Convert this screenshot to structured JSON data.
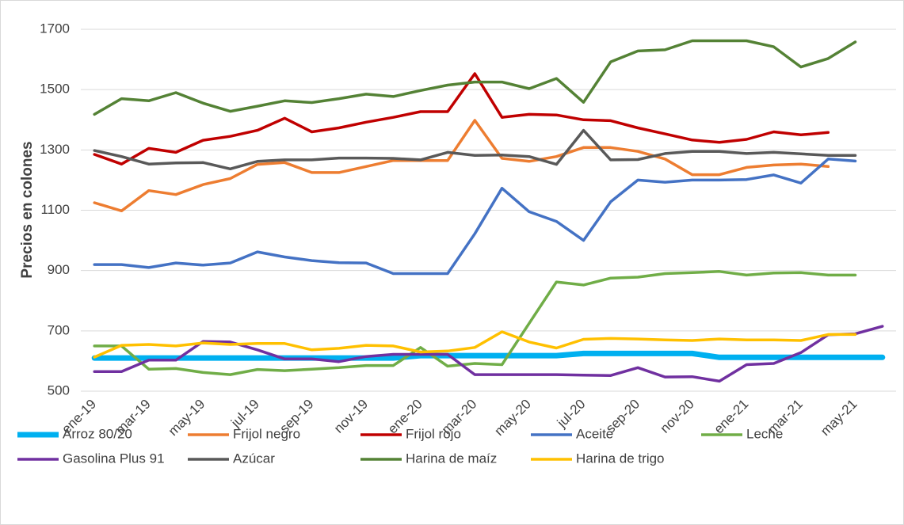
{
  "chart_data": {
    "type": "line",
    "y_label": "Precios en colones",
    "categories": [
      "ene-19",
      null,
      "mar-19",
      null,
      "may-19",
      null,
      "jul-19",
      null,
      "sep-19",
      null,
      "nov-19",
      null,
      "ene-20",
      null,
      "mar-20",
      null,
      "may-20",
      null,
      "jul-20",
      null,
      "sep-20",
      null,
      "nov-20",
      null,
      "ene-21",
      null,
      "mar-21",
      null,
      "may-21",
      null
    ],
    "ylim": [
      500,
      1700
    ],
    "yticks": [
      500,
      700,
      900,
      1100,
      1300,
      1500,
      1700
    ],
    "grid": true,
    "legend": "bottom",
    "series": [
      {
        "name": "Arroz 80/20",
        "color": "#00b0f0",
        "values": [
          610,
          610,
          610,
          610,
          610,
          610,
          610,
          610,
          610,
          610,
          610,
          610,
          618,
          618,
          618,
          618,
          618,
          618,
          625,
          625,
          625,
          625,
          625,
          612,
          612,
          612,
          612,
          612,
          612,
          612
        ]
      },
      {
        "name": "Frijol negro",
        "color": "#ed7d31",
        "values": [
          1125,
          1098,
          1165,
          1152,
          1185,
          1205,
          1252,
          1258,
          1225,
          1225,
          1245,
          1265,
          1265,
          1265,
          1398,
          1272,
          1262,
          1278,
          1308,
          1308,
          1295,
          1270,
          1218,
          1218,
          1242,
          1250,
          1253,
          1245,
          null,
          null
        ]
      },
      {
        "name": "Frijol rojo",
        "color": "#c00000",
        "values": [
          1285,
          1253,
          1305,
          1292,
          1332,
          1345,
          1365,
          1405,
          1360,
          1373,
          1392,
          1408,
          1427,
          1427,
          1553,
          1408,
          1418,
          1416,
          1400,
          1397,
          1373,
          1353,
          1333,
          1325,
          1335,
          1360,
          1350,
          1358,
          null,
          null
        ]
      },
      {
        "name": "Aceite",
        "color": "#4472c4",
        "values": [
          920,
          920,
          910,
          925,
          918,
          925,
          962,
          945,
          933,
          926,
          925,
          890,
          890,
          890,
          1022,
          1173,
          1095,
          1063,
          1000,
          1128,
          1200,
          1193,
          1200,
          1200,
          1202,
          1217,
          1190,
          1270,
          1263,
          null
        ]
      },
      {
        "name": "Leche",
        "color": "#70ad47",
        "values": [
          650,
          650,
          573,
          575,
          562,
          555,
          572,
          568,
          573,
          578,
          585,
          585,
          645,
          583,
          592,
          588,
          725,
          862,
          852,
          875,
          878,
          890,
          893,
          897,
          885,
          892,
          893,
          885,
          885,
          null
        ]
      },
      {
        "name": "Gasolina Plus 91",
        "color": "#7030a0",
        "values": [
          565,
          565,
          603,
          603,
          665,
          663,
          637,
          607,
          607,
          598,
          615,
          622,
          622,
          622,
          555,
          555,
          555,
          555,
          553,
          552,
          578,
          547,
          548,
          533,
          588,
          592,
          628,
          687,
          690,
          715
        ]
      },
      {
        "name": "Azúcar",
        "color": "#595959",
        "values": [
          1298,
          1278,
          1253,
          1257,
          1258,
          1237,
          1262,
          1267,
          1267,
          1273,
          1273,
          1272,
          1267,
          1292,
          1282,
          1283,
          1278,
          1252,
          1365,
          1267,
          1268,
          1288,
          1295,
          1295,
          1288,
          1292,
          1287,
          1282,
          1282,
          null
        ]
      },
      {
        "name": "Harina de maíz",
        "color": "#548235",
        "values": [
          1418,
          1470,
          1463,
          1490,
          1455,
          1428,
          1445,
          1463,
          1457,
          1470,
          1485,
          1477,
          1497,
          1515,
          1525,
          1525,
          1503,
          1537,
          1458,
          1592,
          1628,
          1632,
          1662,
          1662,
          1662,
          1642,
          1575,
          1603,
          1658,
          null
        ]
      },
      {
        "name": "Harina de trigo",
        "color": "#ffc000",
        "values": [
          613,
          652,
          655,
          650,
          660,
          655,
          658,
          658,
          637,
          642,
          652,
          650,
          630,
          633,
          645,
          697,
          663,
          643,
          672,
          675,
          673,
          670,
          668,
          673,
          670,
          670,
          668,
          688,
          688,
          null
        ]
      }
    ]
  }
}
